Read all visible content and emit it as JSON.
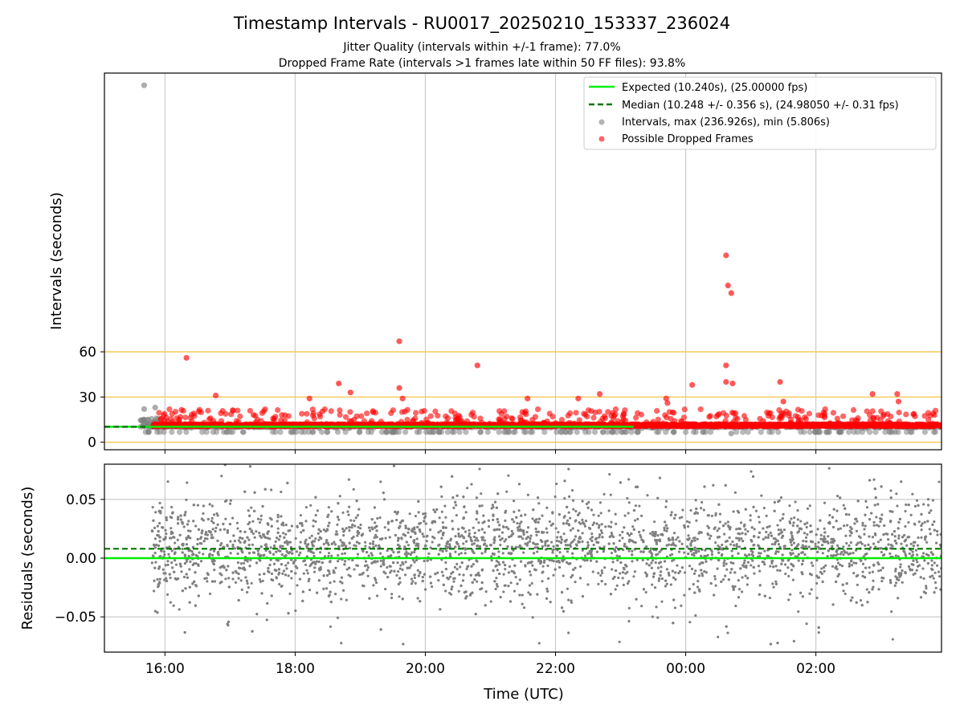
{
  "figure": {
    "title": "Timestamp Intervals - RU0017_20250210_153337_236024",
    "subtitle_1": "Jitter Quality (intervals within +/-1 frame): 77.0%",
    "subtitle_2": "Dropped Frame Rate (intervals >1 frames late within 50 FF files): 93.8%",
    "xlabel": "Time (UTC)"
  },
  "colors": {
    "expected": "#00ee00",
    "median": "#007700",
    "intervals": "#808080",
    "dropped": "#ff0000",
    "hlines": "#f5c542",
    "grid": "#cccccc"
  },
  "chart_data": [
    {
      "type": "scatter",
      "title": "Timestamp Intervals - RU0017_20250210_153337_236024",
      "xlabel": "",
      "ylabel": "Intervals (seconds)",
      "x_unit": "hours since 00:00 UTC (wrapping past midnight)",
      "xlim": [
        15.07,
        27.93
      ],
      "ylim": [
        -5,
        245
      ],
      "x_ticks": [
        {
          "x": 16,
          "label": "16:00"
        },
        {
          "x": 18,
          "label": "18:00"
        },
        {
          "x": 20,
          "label": "20:00"
        },
        {
          "x": 22,
          "label": "22:00"
        },
        {
          "x": 24,
          "label": "00:00"
        },
        {
          "x": 26,
          "label": "02:00"
        }
      ],
      "y_ticks": [
        0,
        30,
        60
      ],
      "hlines": [
        0,
        30,
        60
      ],
      "grid": "vertical",
      "legend": {
        "placement": "upper right",
        "entries": [
          "Expected (10.240s), (25.00000 fps)",
          "Median (10.248 +/- 0.356 s), (24.98050 +/- 0.31 fps)",
          "Intervals, max (236.926s), min (5.806s)",
          "Possible Dropped Frames"
        ]
      },
      "expected_line": 10.24,
      "median_line": 10.248,
      "interval_range": {
        "x_start": 15.62,
        "x_end": 27.93,
        "typical": 10.24
      },
      "outliers_dropped": [
        {
          "x": 16.33,
          "y": 56
        },
        {
          "x": 16.78,
          "y": 31
        },
        {
          "x": 18.22,
          "y": 29
        },
        {
          "x": 18.67,
          "y": 39
        },
        {
          "x": 18.85,
          "y": 33
        },
        {
          "x": 19.6,
          "y": 67
        },
        {
          "x": 19.6,
          "y": 36
        },
        {
          "x": 19.65,
          "y": 29
        },
        {
          "x": 20.8,
          "y": 51
        },
        {
          "x": 21.57,
          "y": 29
        },
        {
          "x": 22.35,
          "y": 29
        },
        {
          "x": 22.68,
          "y": 32
        },
        {
          "x": 23.7,
          "y": 29
        },
        {
          "x": 23.72,
          "y": 26
        },
        {
          "x": 24.1,
          "y": 38
        },
        {
          "x": 24.62,
          "y": 124
        },
        {
          "x": 24.65,
          "y": 104
        },
        {
          "x": 24.7,
          "y": 99
        },
        {
          "x": 24.62,
          "y": 51
        },
        {
          "x": 24.62,
          "y": 40
        },
        {
          "x": 24.72,
          "y": 39
        },
        {
          "x": 25.45,
          "y": 40
        },
        {
          "x": 25.5,
          "y": 27
        },
        {
          "x": 26.87,
          "y": 32
        },
        {
          "x": 27.25,
          "y": 32
        },
        {
          "x": 27.27,
          "y": 27
        }
      ],
      "outliers_intervals": [
        {
          "x": 15.68,
          "y": 236.9
        },
        {
          "x": 15.68,
          "y": 22
        },
        {
          "x": 15.85,
          "y": 23
        },
        {
          "x": 24.7,
          "y": 5.8
        }
      ],
      "dropped_band": {
        "x_start": 15.82,
        "x_end": 27.93,
        "y_min": 11,
        "y_max": 22
      }
    },
    {
      "type": "scatter",
      "xlabel": "Time (UTC)",
      "ylabel": "Residuals (seconds)",
      "xlim": [
        15.07,
        27.93
      ],
      "ylim": [
        -0.08,
        0.08
      ],
      "y_ticks": [
        {
          "y": 0.05,
          "label": "0.05"
        },
        {
          "y": 0.0,
          "label": "0.00"
        },
        {
          "y": -0.05,
          "label": "−0.05"
        }
      ],
      "grid": "both",
      "expected_line": 0.0,
      "median_line": 0.008,
      "residuals_summary": {
        "x_start": 15.8,
        "x_end": 27.93,
        "center": 0.008,
        "std": 0.021
      }
    }
  ]
}
